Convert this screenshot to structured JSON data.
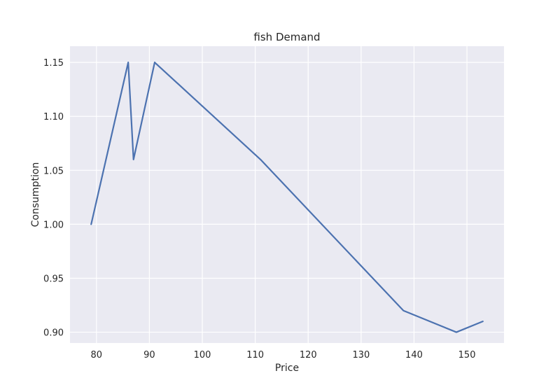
{
  "chart_data": {
    "type": "line",
    "title": "fish Demand",
    "xlabel": "Price",
    "ylabel": "Consumption",
    "xlim": [
      75,
      157
    ],
    "ylim": [
      0.89,
      1.165
    ],
    "xticks": [
      80,
      90,
      100,
      110,
      120,
      130,
      140,
      150
    ],
    "yticks": [
      "0.90",
      "0.95",
      "1.00",
      "1.05",
      "1.10",
      "1.15"
    ],
    "grid": true,
    "legend": "none",
    "colors": {
      "background": "#eaeaf2",
      "grid": "#ffffff",
      "line": "#4c72b0"
    },
    "series": [
      {
        "x": [
          79,
          86,
          87,
          91,
          111,
          138,
          148,
          153
        ],
        "y": [
          1.0,
          1.15,
          1.06,
          1.15,
          1.06,
          0.92,
          0.9,
          0.91
        ]
      }
    ]
  }
}
